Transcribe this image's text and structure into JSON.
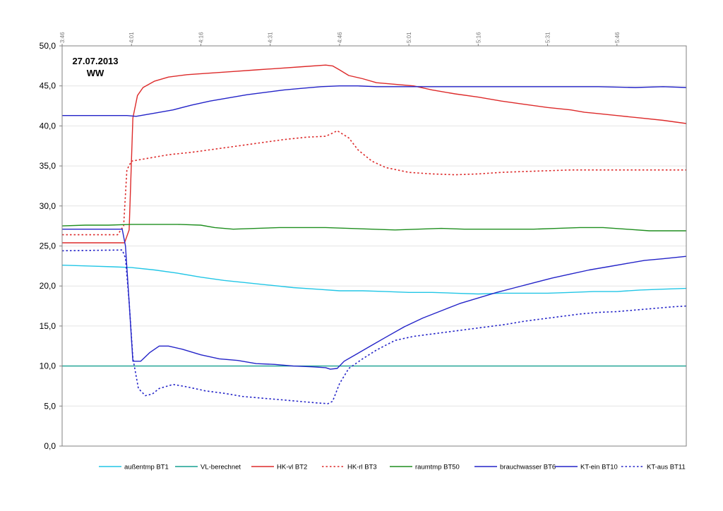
{
  "chart_data": {
    "type": "line",
    "title": "",
    "annotation": [
      "27.07.2013",
      "WW"
    ],
    "xlabel": "",
    "ylabel": "",
    "x_range_minutes": [
      226,
      361
    ],
    "ylim": [
      0,
      50
    ],
    "y_ticks": [
      "0,0",
      "5,0",
      "10,0",
      "15,0",
      "20,0",
      "25,0",
      "30,0",
      "35,0",
      "40,0",
      "45,0",
      "50,0"
    ],
    "x_ticks": [
      {
        "m": 226,
        "label": "3:46"
      },
      {
        "m": 241,
        "label": "4:01"
      },
      {
        "m": 256,
        "label": "4:16"
      },
      {
        "m": 271,
        "label": "4:31"
      },
      {
        "m": 286,
        "label": "4:46"
      },
      {
        "m": 301,
        "label": "5:01"
      },
      {
        "m": 316,
        "label": "5:16"
      },
      {
        "m": 331,
        "label": "5:31"
      },
      {
        "m": 346,
        "label": "5:46"
      }
    ],
    "grid": "horizontal",
    "legend_position": "bottom",
    "series": [
      {
        "name": "außentmp BT1",
        "color": "#22c6e6",
        "style": "solid",
        "points": [
          [
            226,
            22.6
          ],
          [
            232,
            22.5
          ],
          [
            237,
            22.4
          ],
          [
            241,
            22.3
          ],
          [
            246,
            22.0
          ],
          [
            251,
            21.6
          ],
          [
            256,
            21.1
          ],
          [
            261,
            20.7
          ],
          [
            266,
            20.4
          ],
          [
            271,
            20.1
          ],
          [
            276,
            19.8
          ],
          [
            281,
            19.6
          ],
          [
            286,
            19.4
          ],
          [
            291,
            19.4
          ],
          [
            296,
            19.3
          ],
          [
            301,
            19.2
          ],
          [
            306,
            19.2
          ],
          [
            311,
            19.1
          ],
          [
            316,
            19.0
          ],
          [
            321,
            19.1
          ],
          [
            326,
            19.1
          ],
          [
            331,
            19.1
          ],
          [
            336,
            19.2
          ],
          [
            341,
            19.3
          ],
          [
            346,
            19.3
          ],
          [
            351,
            19.5
          ],
          [
            356,
            19.6
          ],
          [
            361,
            19.7
          ]
        ]
      },
      {
        "name": "VL-berechnet",
        "color": "#16a090",
        "style": "solid",
        "points": [
          [
            226,
            10.0
          ],
          [
            361,
            10.0
          ]
        ]
      },
      {
        "name": "HK-vl BT2",
        "color": "#dd2a2a",
        "style": "solid",
        "points": [
          [
            226,
            25.4
          ],
          [
            238,
            25.4
          ],
          [
            239.5,
            25.4
          ],
          [
            240.5,
            27.0
          ],
          [
            241.3,
            41.0
          ],
          [
            242.3,
            43.8
          ],
          [
            243.5,
            44.8
          ],
          [
            246,
            45.6
          ],
          [
            249,
            46.1
          ],
          [
            253,
            46.4
          ],
          [
            258,
            46.6
          ],
          [
            263,
            46.8
          ],
          [
            268,
            47.0
          ],
          [
            273,
            47.2
          ],
          [
            278,
            47.4
          ],
          [
            283,
            47.6
          ],
          [
            284.5,
            47.5
          ],
          [
            286,
            47.0
          ],
          [
            288,
            46.3
          ],
          [
            291,
            45.9
          ],
          [
            294,
            45.4
          ],
          [
            298,
            45.2
          ],
          [
            302,
            45.0
          ],
          [
            306,
            44.5
          ],
          [
            311,
            44.0
          ],
          [
            316,
            43.6
          ],
          [
            321,
            43.1
          ],
          [
            326,
            42.7
          ],
          [
            331,
            42.3
          ],
          [
            336,
            42.0
          ],
          [
            339,
            41.7
          ],
          [
            341,
            41.6
          ],
          [
            346,
            41.3
          ],
          [
            351,
            41.0
          ],
          [
            356,
            40.7
          ],
          [
            361,
            40.3
          ]
        ]
      },
      {
        "name": "HK-rl BT3",
        "color": "#dd2a2a",
        "style": "dotted",
        "points": [
          [
            226,
            26.4
          ],
          [
            238,
            26.4
          ],
          [
            239.3,
            27.5
          ],
          [
            240,
            34.5
          ],
          [
            241,
            35.6
          ],
          [
            244,
            35.9
          ],
          [
            249,
            36.4
          ],
          [
            254,
            36.7
          ],
          [
            259,
            37.1
          ],
          [
            264,
            37.5
          ],
          [
            269,
            37.9
          ],
          [
            274,
            38.3
          ],
          [
            279,
            38.6
          ],
          [
            283,
            38.7
          ],
          [
            284.5,
            39.1
          ],
          [
            285.5,
            39.4
          ],
          [
            288,
            38.5
          ],
          [
            290,
            37.0
          ],
          [
            293,
            35.6
          ],
          [
            296,
            34.8
          ],
          [
            301,
            34.2
          ],
          [
            306,
            34.0
          ],
          [
            311,
            33.9
          ],
          [
            316,
            34.0
          ],
          [
            321,
            34.2
          ],
          [
            326,
            34.3
          ],
          [
            331,
            34.4
          ],
          [
            336,
            34.5
          ],
          [
            341,
            34.5
          ],
          [
            346,
            34.5
          ],
          [
            351,
            34.5
          ],
          [
            356,
            34.5
          ],
          [
            361,
            34.5
          ]
        ]
      },
      {
        "name": "raumtmp BT50",
        "color": "#1e8e1e",
        "style": "solid",
        "points": [
          [
            226,
            27.5
          ],
          [
            231,
            27.6
          ],
          [
            236,
            27.6
          ],
          [
            241,
            27.7
          ],
          [
            246,
            27.7
          ],
          [
            251,
            27.7
          ],
          [
            256,
            27.6
          ],
          [
            259,
            27.3
          ],
          [
            263,
            27.1
          ],
          [
            268,
            27.2
          ],
          [
            273,
            27.3
          ],
          [
            278,
            27.3
          ],
          [
            283,
            27.3
          ],
          [
            288,
            27.2
          ],
          [
            293,
            27.1
          ],
          [
            298,
            27.0
          ],
          [
            303,
            27.1
          ],
          [
            308,
            27.2
          ],
          [
            313,
            27.1
          ],
          [
            318,
            27.1
          ],
          [
            323,
            27.1
          ],
          [
            328,
            27.1
          ],
          [
            333,
            27.2
          ],
          [
            338,
            27.3
          ],
          [
            343,
            27.3
          ],
          [
            348,
            27.1
          ],
          [
            353,
            26.9
          ],
          [
            358,
            26.9
          ],
          [
            361,
            26.9
          ]
        ]
      },
      {
        "name": "brauchwasser BT6",
        "color": "#2323c8",
        "style": "solid",
        "points": [
          [
            226,
            41.3
          ],
          [
            240,
            41.3
          ],
          [
            242,
            41.2
          ],
          [
            246,
            41.6
          ],
          [
            250,
            42.0
          ],
          [
            254,
            42.6
          ],
          [
            258,
            43.1
          ],
          [
            262,
            43.5
          ],
          [
            266,
            43.9
          ],
          [
            270,
            44.2
          ],
          [
            274,
            44.5
          ],
          [
            278,
            44.7
          ],
          [
            282,
            44.9
          ],
          [
            286,
            45.0
          ],
          [
            290,
            45.0
          ],
          [
            294,
            44.9
          ],
          [
            298,
            44.9
          ],
          [
            303,
            44.9
          ],
          [
            310,
            44.9
          ],
          [
            318,
            44.9
          ],
          [
            326,
            44.9
          ],
          [
            334,
            44.9
          ],
          [
            342,
            44.9
          ],
          [
            350,
            44.8
          ],
          [
            356,
            44.9
          ],
          [
            361,
            44.8
          ]
        ]
      },
      {
        "name": "KT-ein BT10",
        "color": "#2323c8",
        "style": "solid",
        "points": [
          [
            226,
            27.1
          ],
          [
            239,
            27.1
          ],
          [
            239.7,
            25.0
          ],
          [
            240.5,
            18.0
          ],
          [
            241.3,
            10.6
          ],
          [
            243,
            10.6
          ],
          [
            245,
            11.7
          ],
          [
            247,
            12.5
          ],
          [
            249,
            12.5
          ],
          [
            252,
            12.1
          ],
          [
            256,
            11.4
          ],
          [
            260,
            10.9
          ],
          [
            264,
            10.7
          ],
          [
            268,
            10.3
          ],
          [
            272,
            10.2
          ],
          [
            276,
            10.0
          ],
          [
            280,
            9.9
          ],
          [
            283,
            9.8
          ],
          [
            284,
            9.6
          ],
          [
            285.5,
            9.7
          ],
          [
            287,
            10.6
          ],
          [
            290,
            11.6
          ],
          [
            293,
            12.6
          ],
          [
            296,
            13.6
          ],
          [
            300,
            14.9
          ],
          [
            304,
            16.0
          ],
          [
            308,
            16.9
          ],
          [
            312,
            17.8
          ],
          [
            316,
            18.5
          ],
          [
            320,
            19.2
          ],
          [
            324,
            19.8
          ],
          [
            328,
            20.4
          ],
          [
            332,
            21.0
          ],
          [
            336,
            21.5
          ],
          [
            340,
            22.0
          ],
          [
            344,
            22.4
          ],
          [
            348,
            22.8
          ],
          [
            352,
            23.2
          ],
          [
            356,
            23.4
          ],
          [
            361,
            23.7
          ]
        ]
      },
      {
        "name": "KT-aus BT11",
        "color": "#2323c8",
        "style": "dotted",
        "points": [
          [
            226,
            24.4
          ],
          [
            239,
            24.5
          ],
          [
            239.7,
            23.5
          ],
          [
            240.5,
            18.0
          ],
          [
            241.3,
            11.0
          ],
          [
            242.5,
            7.2
          ],
          [
            244,
            6.3
          ],
          [
            245.5,
            6.5
          ],
          [
            247,
            7.2
          ],
          [
            250,
            7.7
          ],
          [
            253,
            7.4
          ],
          [
            257,
            6.9
          ],
          [
            261,
            6.6
          ],
          [
            265,
            6.2
          ],
          [
            269,
            6.0
          ],
          [
            273,
            5.8
          ],
          [
            277,
            5.6
          ],
          [
            281,
            5.4
          ],
          [
            283.5,
            5.3
          ],
          [
            284.5,
            5.6
          ],
          [
            286,
            7.8
          ],
          [
            288,
            9.7
          ],
          [
            291,
            10.9
          ],
          [
            294,
            12.0
          ],
          [
            298,
            13.2
          ],
          [
            302,
            13.7
          ],
          [
            306,
            14.0
          ],
          [
            310,
            14.3
          ],
          [
            314,
            14.6
          ],
          [
            318,
            14.9
          ],
          [
            322,
            15.2
          ],
          [
            326,
            15.6
          ],
          [
            330,
            15.9
          ],
          [
            334,
            16.2
          ],
          [
            338,
            16.5
          ],
          [
            342,
            16.7
          ],
          [
            346,
            16.8
          ],
          [
            350,
            17.0
          ],
          [
            354,
            17.2
          ],
          [
            358,
            17.4
          ],
          [
            361,
            17.5
          ]
        ]
      }
    ]
  }
}
